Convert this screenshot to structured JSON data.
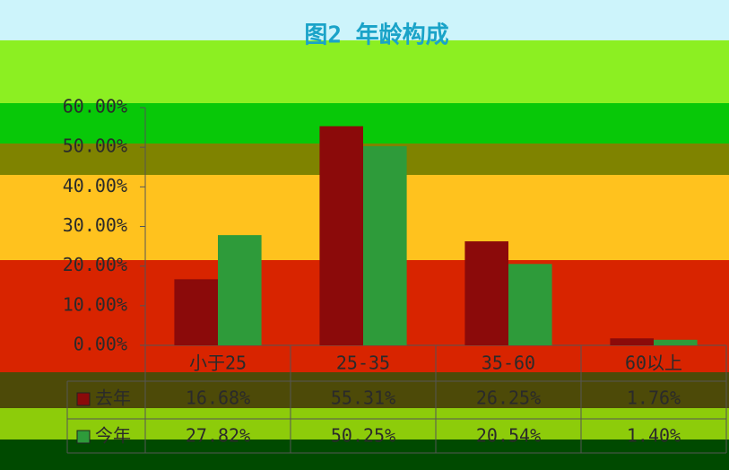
{
  "chart_data": {
    "type": "bar",
    "title": "图2  年龄构成",
    "categories": [
      "小于25",
      "25-35",
      "35-60",
      "60以上"
    ],
    "series": [
      {
        "name": "去年",
        "color": "#8b0a0a",
        "values": [
          16.68,
          55.31,
          26.25,
          1.76
        ],
        "value_labels": [
          "16.68%",
          "55.31%",
          "26.25%",
          "1.76%"
        ]
      },
      {
        "name": "今年",
        "color": "#2e9b3a",
        "values": [
          27.82,
          50.25,
          20.54,
          1.4
        ],
        "value_labels": [
          "27.82%",
          "50.25%",
          "20.54%",
          "1.40%"
        ]
      }
    ],
    "ylim": [
      0,
      60
    ],
    "yticks": [
      {
        "value": 0,
        "label": "0.00%"
      },
      {
        "value": 10,
        "label": "10.00%"
      },
      {
        "value": 20,
        "label": "20.00%"
      },
      {
        "value": 30,
        "label": "30.00%"
      },
      {
        "value": 40,
        "label": "40.00%"
      },
      {
        "value": 50,
        "label": "50.00%"
      },
      {
        "value": 60,
        "label": "60.00%"
      }
    ],
    "grid": false
  }
}
